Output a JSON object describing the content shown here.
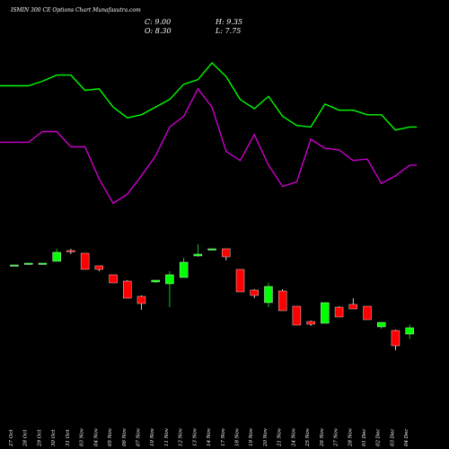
{
  "header": {
    "title": "ISMIN 300 CE Options Chart Munafasutra.com",
    "close_label": "C: 9.00",
    "open_label": "O: 8.30",
    "high_label": "H: 9.35",
    "low_label": "L: 7.75"
  },
  "colors": {
    "background": "#000000",
    "bull": "#00ff00",
    "bear": "#ff0000",
    "line_upper": "#00ff00",
    "line_lower": "#cc00cc",
    "text": "#ffffff"
  },
  "chart_data": {
    "type": "candlestick",
    "categories": [
      "27 Oct",
      "28 Oct",
      "29 Oct",
      "30 Oct",
      "31 Oct",
      "03 Nov",
      "04 Nov",
      "05 Nov",
      "06 Nov",
      "07 Nov",
      "10 Nov",
      "11 Nov",
      "12 Nov",
      "13 Nov",
      "14 Nov",
      "17 Nov",
      "18 Nov",
      "19 Nov",
      "20 Nov",
      "21 Nov",
      "24 Nov",
      "25 Nov",
      "26 Nov",
      "27 Nov",
      "28 Nov",
      "01 Dec",
      "02 Dec",
      "03 Dec",
      "04 Dec"
    ],
    "candles": [
      {
        "open": 16.0,
        "high": 16.0,
        "low": 16.0,
        "close": 16.0
      },
      {
        "open": 16.2,
        "high": 16.2,
        "low": 16.2,
        "close": 16.2
      },
      {
        "open": 16.2,
        "high": 16.2,
        "low": 16.2,
        "close": 16.2
      },
      {
        "open": 16.4,
        "high": 17.8,
        "low": 16.4,
        "close": 17.4
      },
      {
        "open": 17.6,
        "high": 17.8,
        "low": 17.2,
        "close": 17.5
      },
      {
        "open": 17.3,
        "high": 17.3,
        "low": 15.5,
        "close": 15.5
      },
      {
        "open": 15.9,
        "high": 15.9,
        "low": 15.3,
        "close": 15.5
      },
      {
        "open": 14.9,
        "high": 14.9,
        "low": 14.0,
        "close": 14.0
      },
      {
        "open": 14.2,
        "high": 14.3,
        "low": 12.3,
        "close": 12.3
      },
      {
        "open": 12.5,
        "high": 12.6,
        "low": 11.0,
        "close": 11.7
      },
      {
        "open": 14.1,
        "high": 14.3,
        "low": 14.0,
        "close": 14.3
      },
      {
        "open": 13.9,
        "high": 15.3,
        "low": 11.3,
        "close": 14.9
      },
      {
        "open": 14.6,
        "high": 16.8,
        "low": 14.6,
        "close": 16.3
      },
      {
        "open": 17.0,
        "high": 18.3,
        "low": 16.9,
        "close": 17.2
      },
      {
        "open": 17.8,
        "high": 17.8,
        "low": 17.6,
        "close": 17.8
      },
      {
        "open": 17.8,
        "high": 17.8,
        "low": 16.5,
        "close": 16.9
      },
      {
        "open": 15.5,
        "high": 15.5,
        "low": 13.0,
        "close": 13.0
      },
      {
        "open": 13.2,
        "high": 13.3,
        "low": 12.3,
        "close": 12.6
      },
      {
        "open": 11.8,
        "high": 14.0,
        "low": 11.3,
        "close": 13.6
      },
      {
        "open": 13.1,
        "high": 13.3,
        "low": 10.9,
        "close": 10.9
      },
      {
        "open": 11.4,
        "high": 11.4,
        "low": 9.3,
        "close": 9.3
      },
      {
        "open": 9.7,
        "high": 9.8,
        "low": 9.2,
        "close": 9.4
      },
      {
        "open": 9.5,
        "high": 11.8,
        "low": 9.5,
        "close": 11.8
      },
      {
        "open": 11.3,
        "high": 11.4,
        "low": 10.2,
        "close": 10.2
      },
      {
        "open": 11.6,
        "high": 12.3,
        "low": 11.2,
        "close": 11.1
      },
      {
        "open": 11.4,
        "high": 11.4,
        "low": 9.9,
        "close": 9.9
      },
      {
        "open": 9.1,
        "high": 9.6,
        "low": 8.9,
        "close": 9.6
      },
      {
        "open": 8.7,
        "high": 8.8,
        "low": 6.5,
        "close": 7.0
      },
      {
        "open": 8.3,
        "high": 9.35,
        "low": 7.75,
        "close": 9.0
      }
    ],
    "line_series": [
      {
        "values": [
          8.5,
          8.5,
          8.8,
          9.2,
          9.2,
          8.2,
          8.3,
          7.1,
          6.4,
          6.6,
          7.1,
          7.6,
          8.6,
          8.9,
          10.0,
          9.1,
          7.6,
          7.0,
          7.8,
          6.5,
          5.9,
          5.8,
          7.3,
          6.9,
          6.9,
          6.6,
          6.6,
          5.6,
          5.8
        ]
      },
      {
        "values": [
          4.8,
          4.8,
          5.5,
          5.5,
          4.5,
          4.5,
          2.4,
          0.8,
          1.4,
          2.6,
          3.9,
          5.8,
          6.5,
          8.3,
          7.1,
          4.2,
          3.6,
          5.3,
          3.3,
          1.9,
          2.2,
          5.0,
          4.4,
          4.3,
          3.6,
          3.7,
          2.1,
          2.6,
          3.3
        ]
      }
    ],
    "ylim_candles": [
      5.0,
      20.0
    ],
    "ylim_lines": [
      0.0,
      10.0
    ]
  }
}
